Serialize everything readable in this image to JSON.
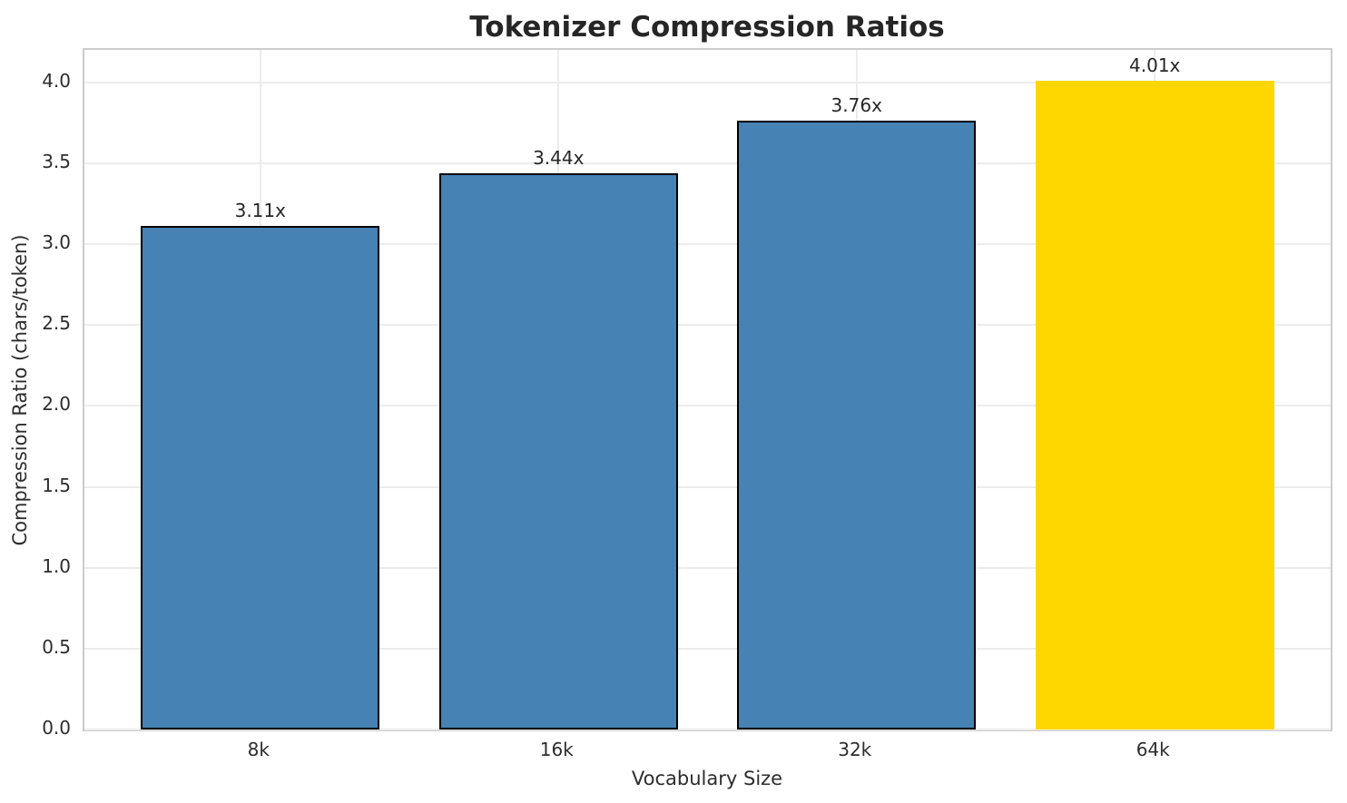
{
  "chart_data": {
    "type": "bar",
    "title": "Tokenizer Compression Ratios",
    "xlabel": "Vocabulary Size",
    "ylabel": "Compression Ratio (chars/token)",
    "categories": [
      "8k",
      "16k",
      "32k",
      "64k"
    ],
    "values": [
      3.11,
      3.44,
      3.76,
      4.01
    ],
    "bar_labels": [
      "3.11x",
      "3.44x",
      "3.76x",
      "4.01x"
    ],
    "bar_colors": [
      "#4682B4",
      "#4682B4",
      "#4682B4",
      "#FFD700"
    ],
    "bar_edge_colors": [
      "#000000",
      "#000000",
      "#000000",
      "none"
    ],
    "highlight_index": 3,
    "ylim": [
      0,
      4.2
    ],
    "yticks": [
      0.0,
      0.5,
      1.0,
      1.5,
      2.0,
      2.5,
      3.0,
      3.5,
      4.0
    ],
    "ytick_labels": [
      "0.0",
      "0.5",
      "1.0",
      "1.5",
      "2.0",
      "2.5",
      "3.0",
      "3.5",
      "4.0"
    ],
    "grid": true,
    "grid_color": "#ececec",
    "spine_color": "#cccccc",
    "text_color": "#262626",
    "legend": "none"
  }
}
